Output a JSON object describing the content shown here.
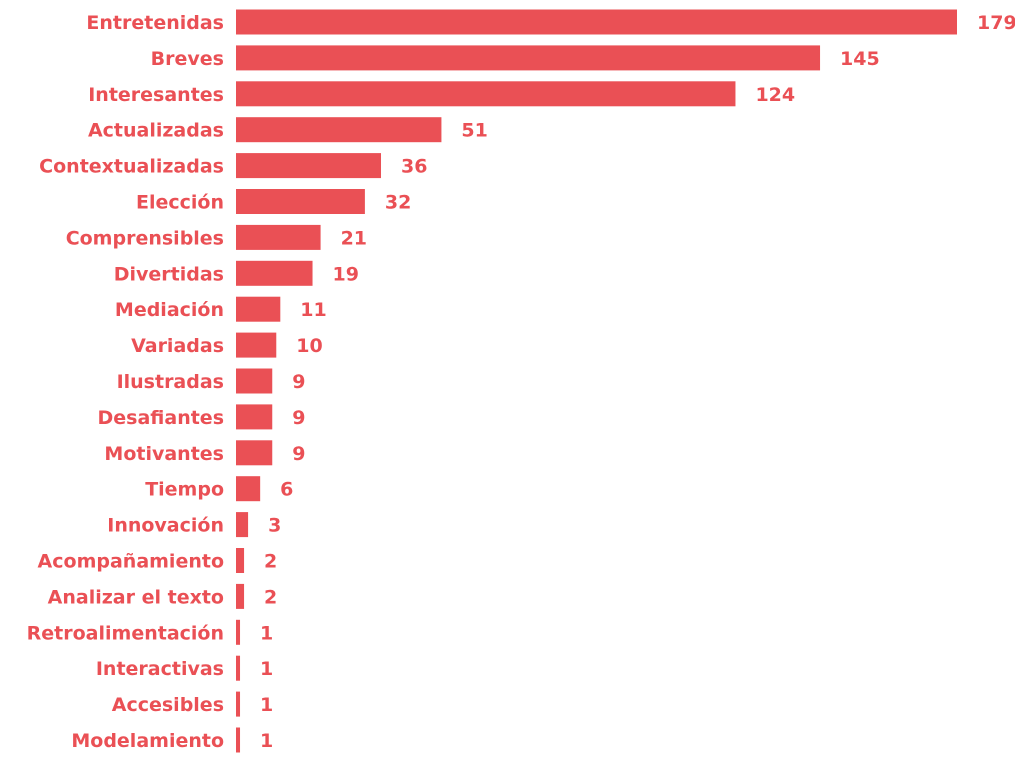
{
  "chart_data": {
    "type": "bar",
    "orientation": "horizontal",
    "categories": [
      "Entretenidas",
      "Breves",
      "Interesantes",
      "Actualizadas",
      "Contextualizadas",
      "Elección",
      "Comprensibles",
      "Divertidas",
      "Mediación",
      "Variadas",
      "Ilustradas",
      "Desafiantes",
      "Motivantes",
      "Tiempo",
      "Innovación",
      "Acompañamiento",
      "Analizar el texto",
      "Retroalimentación",
      "Interactivas",
      "Accesibles",
      "Modelamiento"
    ],
    "values": [
      179,
      145,
      124,
      51,
      36,
      32,
      21,
      19,
      11,
      10,
      9,
      9,
      9,
      6,
      3,
      2,
      2,
      1,
      1,
      1,
      1
    ],
    "xlim": [
      0,
      179
    ],
    "grid": false,
    "legend": "none",
    "data_labels": true,
    "colors": {
      "bar": "#ea5055",
      "text": "#ea5055"
    }
  }
}
